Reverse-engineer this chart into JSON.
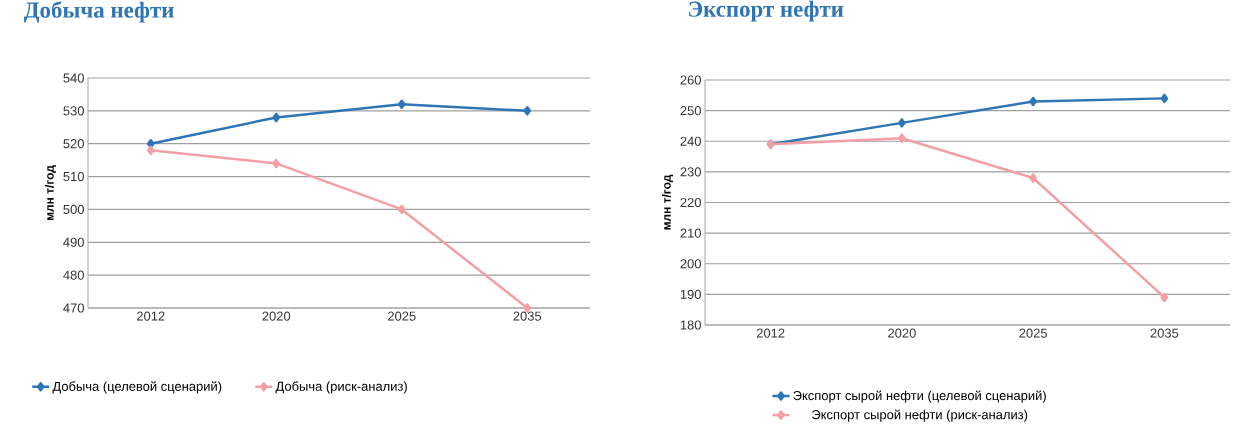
{
  "chart_data": [
    {
      "type": "line",
      "title": "Добыча нефти",
      "ylabel": "млн т/год",
      "categories": [
        "2012",
        "2020",
        "2025",
        "2035"
      ],
      "ylim": [
        470,
        540
      ],
      "yticks": [
        470,
        480,
        490,
        500,
        510,
        520,
        530,
        540
      ],
      "grid": "y",
      "legend": "bottom",
      "marker": "diamond",
      "series": [
        {
          "name": "Добыча (целевой сценарий)",
          "color": "#2e75b6",
          "values": [
            520,
            528,
            532,
            530
          ]
        },
        {
          "name": "Добыча (риск-анализ)",
          "color": "#f2a0a6",
          "values": [
            518,
            514,
            500,
            470
          ]
        }
      ]
    },
    {
      "type": "line",
      "title": "Экспорт нефти",
      "ylabel": "млн т/год",
      "categories": [
        "2012",
        "2020",
        "2025",
        "2035"
      ],
      "ylim": [
        180,
        260
      ],
      "yticks": [
        180,
        190,
        200,
        210,
        220,
        230,
        240,
        250,
        260
      ],
      "grid": "y",
      "legend": "bottom",
      "marker": "diamond",
      "series": [
        {
          "name": "Экспорт сырой нефти (целевой сценарий)",
          "color": "#2e75b6",
          "values": [
            239,
            246,
            253,
            254
          ]
        },
        {
          "name": "Экспорт сырой нефти (риск-анализ)",
          "color": "#f2a0a6",
          "values": [
            239,
            241,
            228,
            189
          ]
        }
      ]
    }
  ]
}
